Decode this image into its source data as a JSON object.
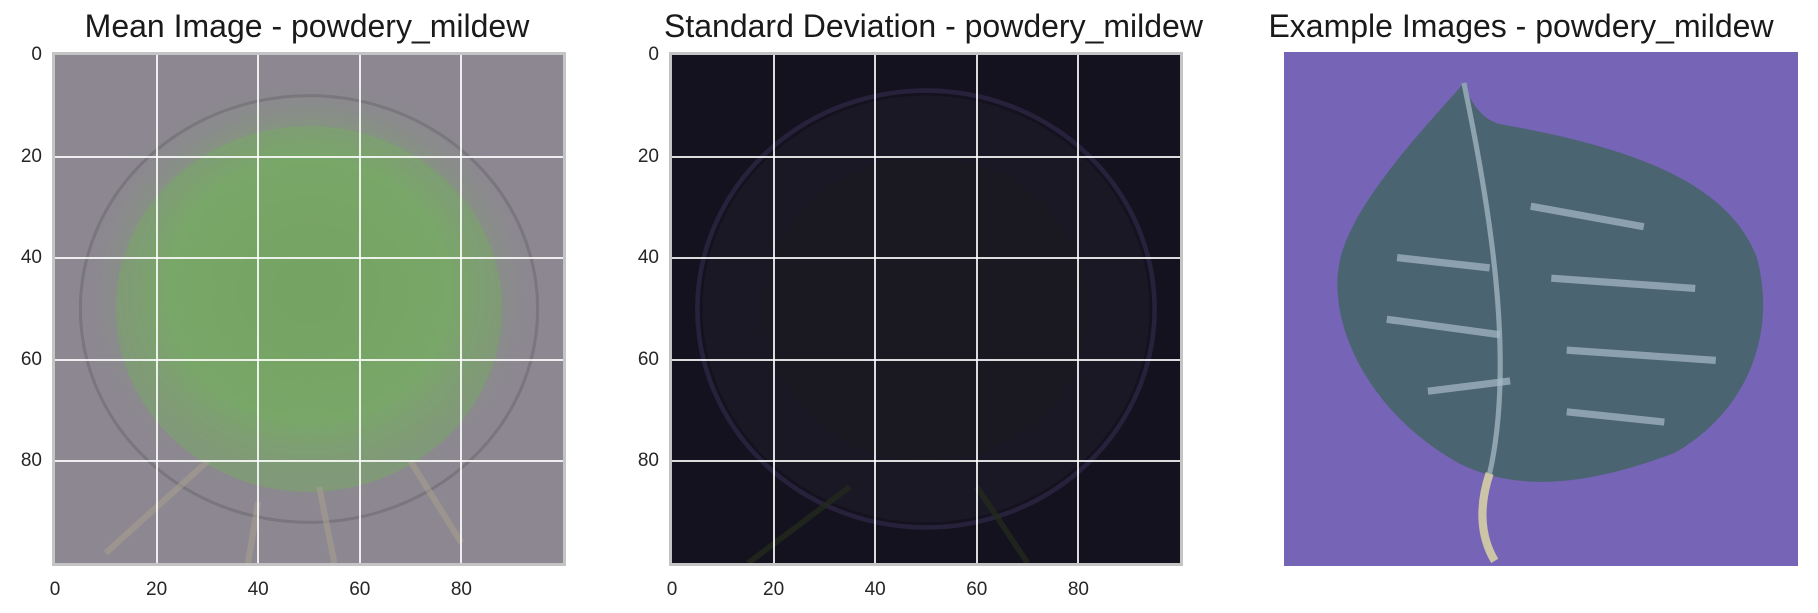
{
  "chart_data": [
    {
      "type": "image",
      "title": "Mean Image - powdery_mildew",
      "x_ticks": [
        0,
        20,
        40,
        60,
        80
      ],
      "y_ticks": [
        0,
        20,
        40,
        60,
        80
      ],
      "xlim": [
        0,
        100
      ],
      "ylim": [
        100,
        0
      ],
      "grid": true,
      "image_colors": {
        "background": "#8c8690",
        "leaf": "#7aa86a",
        "leaf_dark": "#5e8c54"
      }
    },
    {
      "type": "image",
      "title": "Standard Deviation - powdery_mildew",
      "x_ticks": [
        0,
        20,
        40,
        60,
        80
      ],
      "y_ticks": [
        0,
        20,
        40,
        60,
        80
      ],
      "xlim": [
        0,
        100
      ],
      "ylim": [
        100,
        0
      ],
      "grid": true,
      "image_colors": {
        "background": "#15121f",
        "leaf": "#1e1a26",
        "edge": "#2b2540"
      }
    },
    {
      "type": "image",
      "title": "Example Images - powdery_mildew",
      "axis": "off",
      "grid": false,
      "image_colors": {
        "background": "#7663b5",
        "leaf": "#4c6572",
        "leaf_light": "#a9bcc6",
        "stem": "#c9c3a8"
      }
    }
  ]
}
